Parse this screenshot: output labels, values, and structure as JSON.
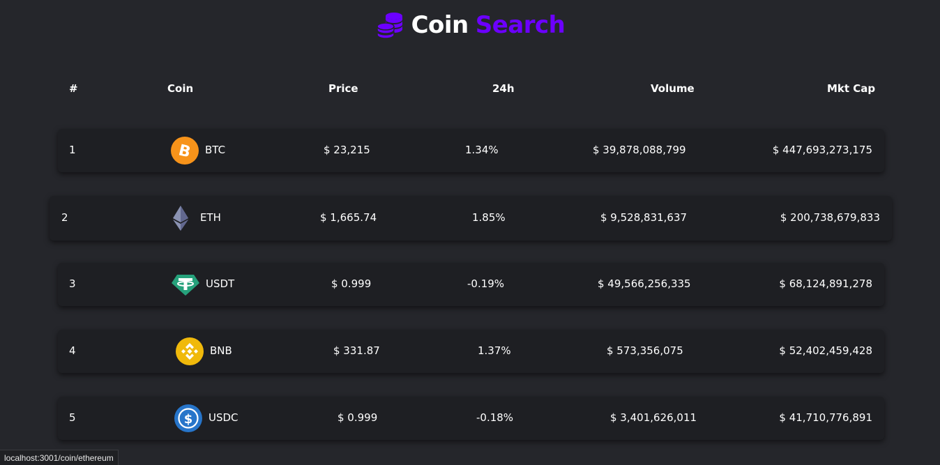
{
  "header": {
    "title_part1": "Coin",
    "title_part2": "Search",
    "accent_color": "#6c00ff",
    "logo_icon": "coins-stack-icon"
  },
  "table": {
    "columns": [
      "#",
      "Coin",
      "Price",
      "24h",
      "Volume",
      "Mkt Cap"
    ],
    "rows": [
      {
        "rank": "1",
        "symbol": "BTC",
        "icon": "bitcoin-icon",
        "price": "$ 23,215",
        "change": "1.34%",
        "volume": "$ 39,878,088,799",
        "mktcap": "$ 447,693,273,175"
      },
      {
        "rank": "2",
        "symbol": "ETH",
        "icon": "ethereum-icon",
        "price": "$ 1,665.74",
        "change": "1.85%",
        "volume": "$ 9,528,831,637",
        "mktcap": "$ 200,738,679,833"
      },
      {
        "rank": "3",
        "symbol": "USDT",
        "icon": "tether-icon",
        "price": "$ 0.999",
        "change": "-0.19%",
        "volume": "$ 49,566,256,335",
        "mktcap": "$ 68,124,891,278"
      },
      {
        "rank": "4",
        "symbol": "BNB",
        "icon": "bnb-icon",
        "price": "$ 331.87",
        "change": "1.37%",
        "volume": "$ 573,356,075",
        "mktcap": "$ 52,402,459,428"
      },
      {
        "rank": "5",
        "symbol": "USDC",
        "icon": "usdc-icon",
        "price": "$ 0.999",
        "change": "-0.18%",
        "volume": "$ 3,401,626,011",
        "mktcap": "$ 41,710,776,891"
      }
    ]
  },
  "statusbar": {
    "url": "localhost:3001/coin/ethereum"
  }
}
